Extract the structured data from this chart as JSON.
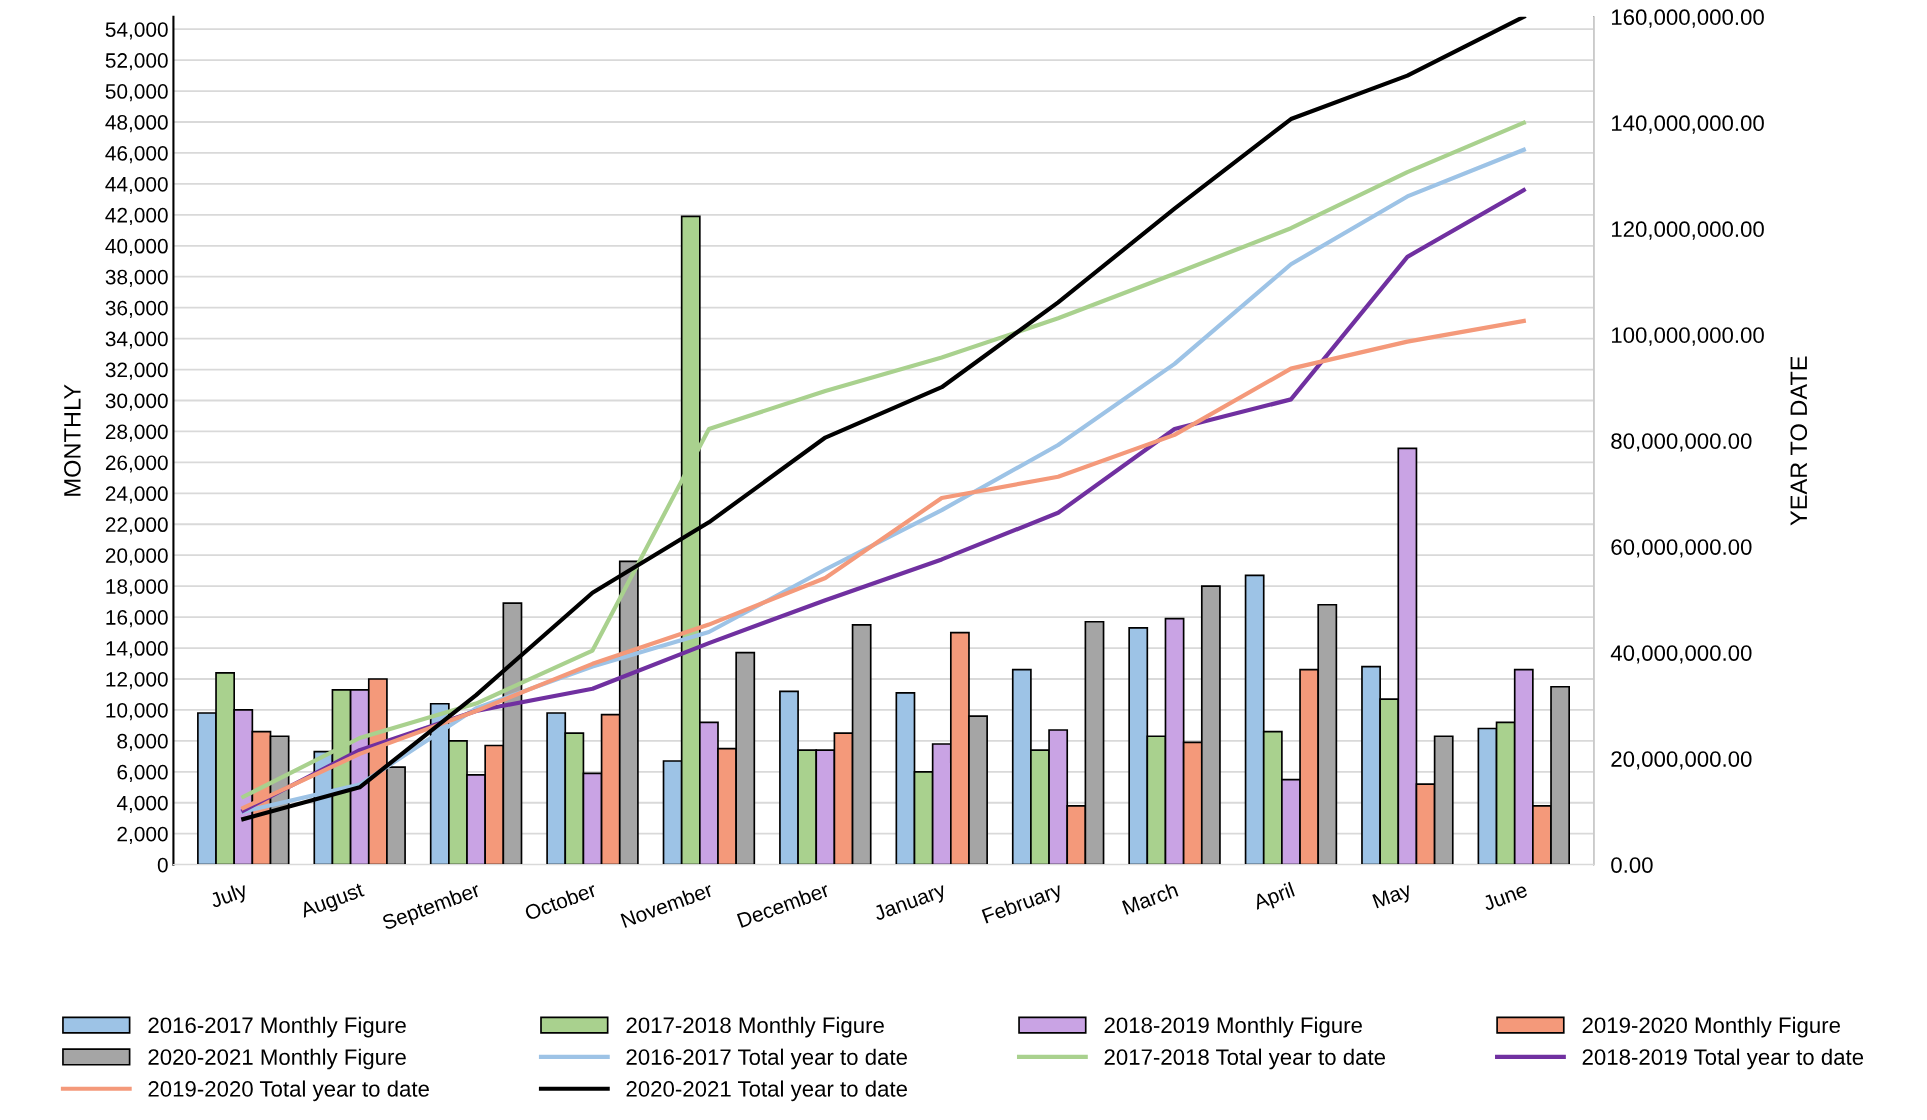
{
  "chart_data": {
    "type": "bar",
    "ylabel": "MONTHLY",
    "y2label": "YEAR TO DATE",
    "categories": [
      "July",
      "August",
      "September",
      "October",
      "November",
      "December",
      "January",
      "February",
      "March",
      "April",
      "May",
      "June"
    ],
    "series": [
      {
        "name": "2016-2017 Monthly Figure",
        "color": "#9dc3e6",
        "values": [
          9800,
          7300,
          10400,
          9800,
          6700,
          11200,
          11100,
          12600,
          15300,
          18700,
          12800,
          8800
        ]
      },
      {
        "name": "2017-2018 Monthly Figure",
        "color": "#a9d18e",
        "values": [
          12400,
          11300,
          8000,
          8500,
          41900,
          7400,
          6000,
          7400,
          8300,
          8600,
          10700,
          9200
        ]
      },
      {
        "name": "2018-2019 Monthly Figure",
        "color": "#c9a3e4",
        "values": [
          10000,
          11300,
          5800,
          5900,
          9200,
          7400,
          7800,
          8700,
          15900,
          5500,
          26900,
          12600
        ]
      },
      {
        "name": "2019-2020 Monthly Figure",
        "color": "#f4997a",
        "values": [
          8600,
          12000,
          7700,
          9700,
          7500,
          8500,
          15000,
          3800,
          7900,
          12600,
          5200,
          3800
        ]
      },
      {
        "name": "2020-2021 Monthly Figure",
        "color": "#a5a5a5",
        "values": [
          8300,
          6300,
          16900,
          19600,
          13700,
          15500,
          9600,
          15700,
          18000,
          16800,
          8300,
          11500
        ]
      },
      {
        "name": "2016-2017 Total year to date",
        "type": "line",
        "axis": "y2",
        "color": "#9dc3e6",
        "values": [
          10000000,
          15100000,
          29500000,
          37400000,
          43900000,
          55700000,
          66900000,
          79200000,
          94500000,
          113300000,
          126100000,
          134900000
        ]
      },
      {
        "name": "2017-2018 Total year to date",
        "type": "line",
        "axis": "y2",
        "color": "#a9d18e",
        "values": [
          12800000,
          23900000,
          30400000,
          40400000,
          82200000,
          89400000,
          95700000,
          103100000,
          111500000,
          120100000,
          130700000,
          140000000
        ]
      },
      {
        "name": "2018-2019 Total year to date",
        "type": "line",
        "axis": "y2",
        "color": "#7030a0",
        "values": [
          10200000,
          21600000,
          29000000,
          33200000,
          41800000,
          49900000,
          57600000,
          66400000,
          82200000,
          87800000,
          114700000,
          127300000
        ]
      },
      {
        "name": "2019-2020 Total year to date",
        "type": "line",
        "axis": "y2",
        "color": "#f4997a",
        "values": [
          10700000,
          20900000,
          29000000,
          37900000,
          45300000,
          54100000,
          69200000,
          73200000,
          81100000,
          93600000,
          98700000,
          102600000
        ]
      },
      {
        "name": "2020-2021 Total year to date",
        "type": "line",
        "axis": "y2",
        "color": "#000000",
        "values": [
          8600000,
          14600000,
          32000000,
          51300000,
          64600000,
          80600000,
          90100000,
          106100000,
          123800000,
          140700000,
          148900000,
          160000000
        ]
      }
    ],
    "ylim": [
      0,
      54800
    ],
    "yticks": [
      0,
      {
        "value": 2000,
        "label": "2,000"
      },
      {
        "value": 4000,
        "label": "4,000"
      },
      {
        "value": 6000,
        "label": "6,000"
      },
      {
        "value": 8000,
        "label": "8,000"
      },
      {
        "value": 10000,
        "label": "10,000"
      },
      {
        "value": 12000,
        "label": "12,000"
      },
      {
        "value": 14000,
        "label": "14,000"
      },
      {
        "value": 16000,
        "label": "16,000"
      },
      {
        "value": 18000,
        "label": "18,000"
      },
      {
        "value": 20000,
        "label": "20,000"
      },
      {
        "value": 22000,
        "label": "22,000"
      },
      {
        "value": 24000,
        "label": "24,000"
      },
      {
        "value": 26000,
        "label": "26,000"
      },
      {
        "value": 28000,
        "label": "28,000"
      },
      {
        "value": 30000,
        "label": "30,000"
      },
      {
        "value": 32000,
        "label": "32,000"
      },
      {
        "value": 34000,
        "label": "34,000"
      },
      {
        "value": 36000,
        "label": "36,000"
      },
      {
        "value": 38000,
        "label": "38,000"
      },
      {
        "value": 40000,
        "label": "40,000"
      },
      {
        "value": 42000,
        "label": "42,000"
      },
      {
        "value": 44000,
        "label": "44,000"
      },
      {
        "value": 46000,
        "label": "46,000"
      },
      {
        "value": 48000,
        "label": "48,000"
      },
      {
        "value": 50000,
        "label": "50,000"
      },
      {
        "value": 52000,
        "label": "52,000"
      },
      {
        "value": 54000,
        "label": "54,000"
      }
    ],
    "y2lim": [
      0,
      160000000
    ],
    "y2ticks": [
      {
        "value": 0,
        "label": "0.00"
      },
      {
        "value": 20000000,
        "label": "20,000,000.00"
      },
      {
        "value": 40000000,
        "label": "40,000,000.00"
      },
      {
        "value": 60000000,
        "label": "60,000,000.00"
      },
      {
        "value": 80000000,
        "label": "80,000,000.00"
      },
      {
        "value": 100000000,
        "label": "100,000,000.00"
      },
      {
        "value": 120000000,
        "label": "120,000,000.00"
      },
      {
        "value": 140000000,
        "label": "140,000,000.00"
      },
      {
        "value": 160000000,
        "label": "160,000,000.00"
      }
    ],
    "grid": "y",
    "legend": "bottom",
    "marker": "none",
    "line_style": "solid"
  }
}
